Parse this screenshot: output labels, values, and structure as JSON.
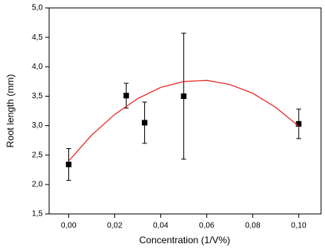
{
  "chart_data": {
    "type": "scatter",
    "xlabel": "Concentration (1/V%)",
    "ylabel": "Root length (mm)",
    "xlim": [
      -0.0085,
      0.1097
    ],
    "ylim": [
      1.5,
      5.0
    ],
    "xticks": [
      {
        "value": 0,
        "label": "0,00"
      },
      {
        "value": 0.02,
        "label": "0,02"
      },
      {
        "value": 0.04,
        "label": "0,04"
      },
      {
        "value": 0.06,
        "label": "0,06"
      },
      {
        "value": 0.08,
        "label": "0,08"
      },
      {
        "value": 0.1,
        "label": "0,10"
      }
    ],
    "yticks": [
      {
        "value": 1.5,
        "label": "1,5"
      },
      {
        "value": 2.0,
        "label": "2,0"
      },
      {
        "value": 2.5,
        "label": "2,5"
      },
      {
        "value": 3.0,
        "label": "3,0"
      },
      {
        "value": 3.5,
        "label": "3,5"
      },
      {
        "value": 4.0,
        "label": "4,0"
      },
      {
        "value": 4.5,
        "label": "4,5"
      },
      {
        "value": 5.0,
        "label": "5,0"
      }
    ],
    "series": [
      {
        "type": "scatter",
        "color": "#000000",
        "x": [
          0,
          0.025,
          0.033,
          0.05,
          0.1
        ],
        "values": [
          2.34,
          3.51,
          3.05,
          3.5,
          3.03
        ],
        "errors": [
          0.27,
          0.21,
          0.35,
          1.07,
          0.25
        ]
      },
      {
        "type": "line",
        "color": "#e8231f",
        "x": [
          0,
          0.01,
          0.02,
          0.03,
          0.04,
          0.05,
          0.06,
          0.07,
          0.08,
          0.09,
          0.1
        ],
        "values": [
          2.4,
          2.84,
          3.19,
          3.46,
          3.65,
          3.75,
          3.77,
          3.7,
          3.55,
          3.31,
          2.99
        ]
      }
    ]
  }
}
